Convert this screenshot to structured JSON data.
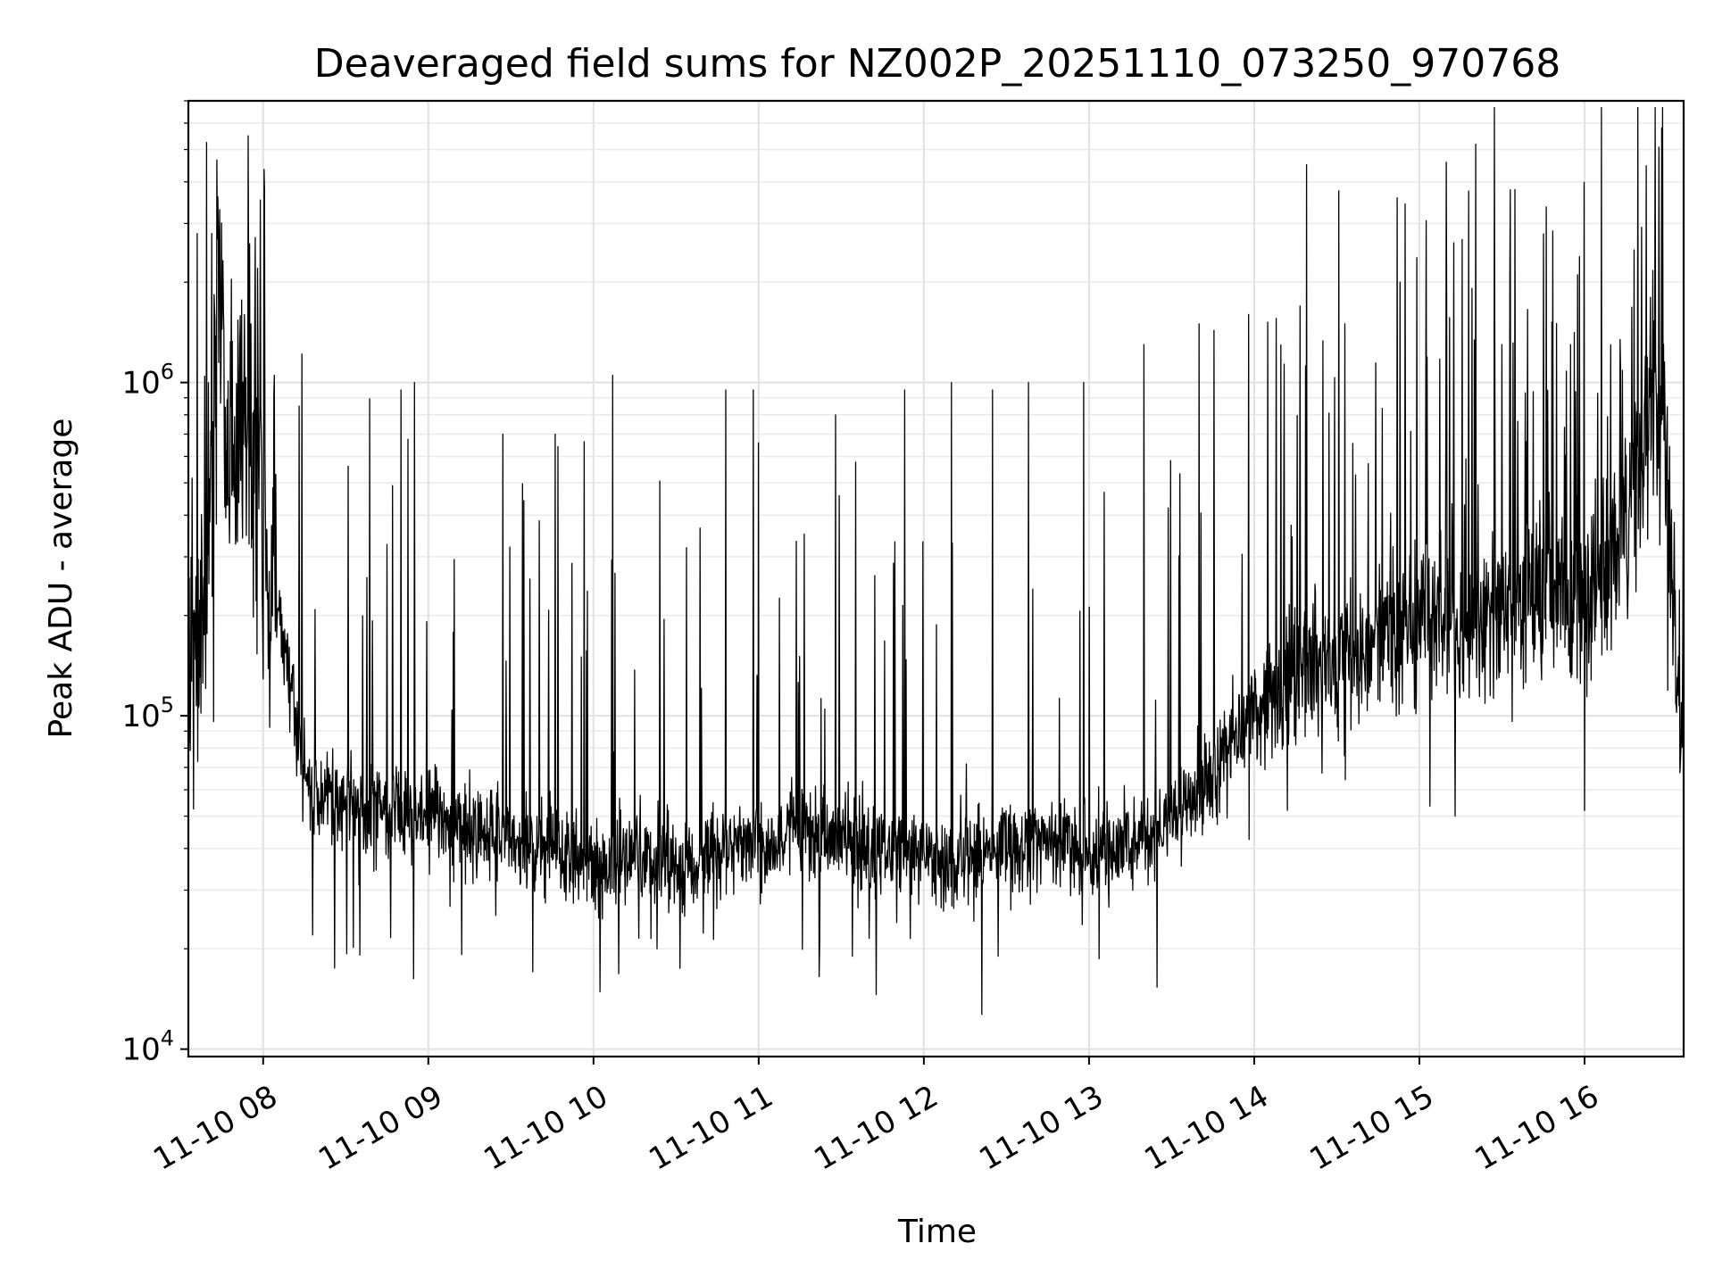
{
  "chart_data": {
    "type": "line",
    "title": "Deaveraged field sums for NZ002P_20251110_073250_970768",
    "xlabel": "Time",
    "ylabel": "Peak ADU - average",
    "yscale": "log",
    "ylim": [
      9500,
      7000000
    ],
    "xlim": [
      "2025-11-10 07:32:50",
      "2025-11-10 16:36:00"
    ],
    "grid": true,
    "x_ticks": [
      {
        "value": "2025-11-10 08:00",
        "label": "11-10 08"
      },
      {
        "value": "2025-11-10 09:00",
        "label": "11-10 09"
      },
      {
        "value": "2025-11-10 10:00",
        "label": "11-10 10"
      },
      {
        "value": "2025-11-10 11:00",
        "label": "11-10 11"
      },
      {
        "value": "2025-11-10 12:00",
        "label": "11-10 12"
      },
      {
        "value": "2025-11-10 13:00",
        "label": "11-10 13"
      },
      {
        "value": "2025-11-10 14:00",
        "label": "11-10 14"
      },
      {
        "value": "2025-11-10 15:00",
        "label": "11-10 15"
      },
      {
        "value": "2025-11-10 16:00",
        "label": "11-10 16"
      }
    ],
    "y_ticks": [
      {
        "value": 10000,
        "base": "10",
        "exp": "4"
      },
      {
        "value": 100000,
        "base": "10",
        "exp": "5"
      },
      {
        "value": 1000000,
        "base": "10",
        "exp": "6"
      }
    ],
    "series": [
      {
        "color": "#000000",
        "x": [
          "2025-11-10 07:33",
          "2025-11-10 07:35",
          "2025-11-10 07:38",
          "2025-11-10 07:40",
          "2025-11-10 07:42",
          "2025-11-10 07:44",
          "2025-11-10 07:45",
          "2025-11-10 07:47",
          "2025-11-10 07:48",
          "2025-11-10 07:50",
          "2025-11-10 07:53",
          "2025-11-10 07:56",
          "2025-11-10 07:58",
          "2025-11-10 08:00",
          "2025-11-10 08:05",
          "2025-11-10 08:10",
          "2025-11-10 08:15",
          "2025-11-10 08:20",
          "2025-11-10 08:25",
          "2025-11-10 08:30",
          "2025-11-10 08:45",
          "2025-11-10 09:00",
          "2025-11-10 09:15",
          "2025-11-10 09:30",
          "2025-11-10 09:45",
          "2025-11-10 10:00",
          "2025-11-10 10:15",
          "2025-11-10 10:30",
          "2025-11-10 10:45",
          "2025-11-10 11:00",
          "2025-11-10 11:15",
          "2025-11-10 11:30",
          "2025-11-10 11:45",
          "2025-11-10 12:00",
          "2025-11-10 12:15",
          "2025-11-10 12:30",
          "2025-11-10 12:45",
          "2025-11-10 13:00",
          "2025-11-10 13:15",
          "2025-11-10 13:30",
          "2025-11-10 13:45",
          "2025-11-10 14:00",
          "2025-11-10 14:15",
          "2025-11-10 14:30",
          "2025-11-10 14:45",
          "2025-11-10 15:00",
          "2025-11-10 15:15",
          "2025-11-10 15:30",
          "2025-11-10 15:45",
          "2025-11-10 16:00",
          "2025-11-10 16:10",
          "2025-11-10 16:20",
          "2025-11-10 16:25",
          "2025-11-10 16:30",
          "2025-11-10 16:33",
          "2025-11-10 16:35"
        ],
        "values": [
          180000,
          150000,
          250000,
          450000,
          700000,
          2500000,
          1500000,
          500000,
          650000,
          600000,
          900000,
          850000,
          600000,
          500000,
          250000,
          120000,
          70000,
          55000,
          60000,
          55000,
          50000,
          50000,
          45000,
          43000,
          40000,
          35000,
          38000,
          35000,
          40000,
          42000,
          45000,
          42000,
          40000,
          38000,
          38000,
          40000,
          40000,
          38000,
          42000,
          50000,
          70000,
          100000,
          130000,
          150000,
          170000,
          200000,
          180000,
          200000,
          250000,
          200000,
          300000,
          500000,
          1000000,
          600000,
          150000,
          100000
        ]
      }
    ],
    "spikes": [
      {
        "x": "2025-11-10 07:58",
        "y": 2200000
      },
      {
        "x": "2025-11-10 08:13",
        "y": 850000
      },
      {
        "x": "2025-11-10 08:50",
        "y": 950000
      },
      {
        "x": "2025-11-10 08:55",
        "y": 1000000
      },
      {
        "x": "2025-11-10 09:27",
        "y": 700000
      },
      {
        "x": "2025-11-10 09:46",
        "y": 700000
      },
      {
        "x": "2025-11-10 10:07",
        "y": 1050000
      },
      {
        "x": "2025-11-10 10:23",
        "y": 1000000
      },
      {
        "x": "2025-11-10 10:48",
        "y": 950000
      },
      {
        "x": "2025-11-10 10:58",
        "y": 950000
      },
      {
        "x": "2025-11-10 11:28",
        "y": 800000
      },
      {
        "x": "2025-11-10 11:53",
        "y": 950000
      },
      {
        "x": "2025-11-10 12:10",
        "y": 1000000
      },
      {
        "x": "2025-11-10 12:25",
        "y": 950000
      },
      {
        "x": "2025-11-10 12:38",
        "y": 1000000
      },
      {
        "x": "2025-11-10 12:58",
        "y": 1000000
      },
      {
        "x": "2025-11-10 13:20",
        "y": 1300000
      },
      {
        "x": "2025-11-10 13:40",
        "y": 1500000
      },
      {
        "x": "2025-11-10 13:58",
        "y": 1600000
      },
      {
        "x": "2025-11-10 14:19",
        "y": 4500000
      },
      {
        "x": "2025-11-10 14:33",
        "y": 1500000
      },
      {
        "x": "2025-11-10 14:53",
        "y": 2000000
      },
      {
        "x": "2025-11-10 15:10",
        "y": 1500000
      },
      {
        "x": "2025-11-10 15:30",
        "y": 1300000
      },
      {
        "x": "2025-11-10 15:55",
        "y": 1300000
      },
      {
        "x": "2025-11-10 16:18",
        "y": 2500000
      },
      {
        "x": "2025-11-10 16:28",
        "y": 5800000
      }
    ],
    "dips": [
      {
        "x": "2025-11-10 08:18",
        "y": 22000
      },
      {
        "x": "2025-11-10 08:26",
        "y": 17500
      },
      {
        "x": "2025-11-10 10:23",
        "y": 20000
      },
      {
        "x": "2025-11-10 11:22",
        "y": 16500
      },
      {
        "x": "2025-11-10 11:34",
        "y": 19000
      },
      {
        "x": "2025-11-10 12:21",
        "y": 12700
      },
      {
        "x": "2025-11-10 12:27",
        "y": 19000
      },
      {
        "x": "2025-11-10 15:13",
        "y": 50000
      },
      {
        "x": "2025-11-10 16:00",
        "y": 52000
      }
    ]
  }
}
